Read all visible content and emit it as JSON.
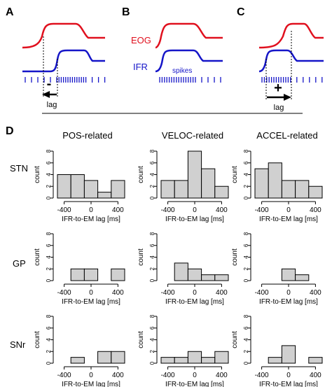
{
  "panels": {
    "A": {
      "label": "A",
      "sign": "-",
      "lag_label": "lag"
    },
    "B": {
      "label": "B",
      "eog_label": "EOG",
      "ifr_label": "IFR",
      "spikes_label": "spikes"
    },
    "C": {
      "label": "C",
      "sign": "+",
      "lag_label": "lag"
    },
    "D": {
      "label": "D"
    }
  },
  "colors": {
    "eog": "#e0101e",
    "ifr": "#1515c8",
    "bar_fill": "#d0d0d0",
    "ink": "#000000"
  },
  "columns": [
    "POS-related",
    "VELOC-related",
    "ACCEL-related"
  ],
  "rows": [
    "STN",
    "GP",
    "SNr"
  ],
  "histogram_common": {
    "ylabel": "count",
    "xlabel": "IFR-to-EM lag [ms]",
    "xticks": [
      -400,
      0,
      400
    ],
    "yticks": [
      0,
      2,
      4,
      6,
      8
    ],
    "ylim": [
      0,
      8
    ],
    "bin_edges": [
      -500,
      -300,
      -100,
      100,
      300,
      500
    ]
  },
  "chart_data": [
    {
      "type": "bar",
      "region": "STN",
      "group": "POS-related",
      "values": [
        4,
        4,
        3,
        1,
        3
      ]
    },
    {
      "type": "bar",
      "region": "STN",
      "group": "VELOC-related",
      "values": [
        3,
        3,
        8,
        5,
        2
      ]
    },
    {
      "type": "bar",
      "region": "STN",
      "group": "ACCEL-related",
      "values": [
        5,
        6,
        3,
        3,
        2
      ]
    },
    {
      "type": "bar",
      "region": "GP",
      "group": "POS-related",
      "values": [
        0,
        2,
        2,
        0,
        2
      ]
    },
    {
      "type": "bar",
      "region": "GP",
      "group": "VELOC-related",
      "values": [
        0,
        3,
        2,
        1,
        1
      ]
    },
    {
      "type": "bar",
      "region": "GP",
      "group": "ACCEL-related",
      "values": [
        0,
        0,
        2,
        1,
        0
      ]
    },
    {
      "type": "bar",
      "region": "SNr",
      "group": "POS-related",
      "values": [
        0,
        1,
        0,
        2,
        2
      ]
    },
    {
      "type": "bar",
      "region": "SNr",
      "group": "VELOC-related",
      "values": [
        1,
        1,
        2,
        1,
        2
      ]
    },
    {
      "type": "bar",
      "region": "SNr",
      "group": "ACCEL-related",
      "values": [
        0,
        1,
        3,
        0,
        1
      ]
    }
  ]
}
